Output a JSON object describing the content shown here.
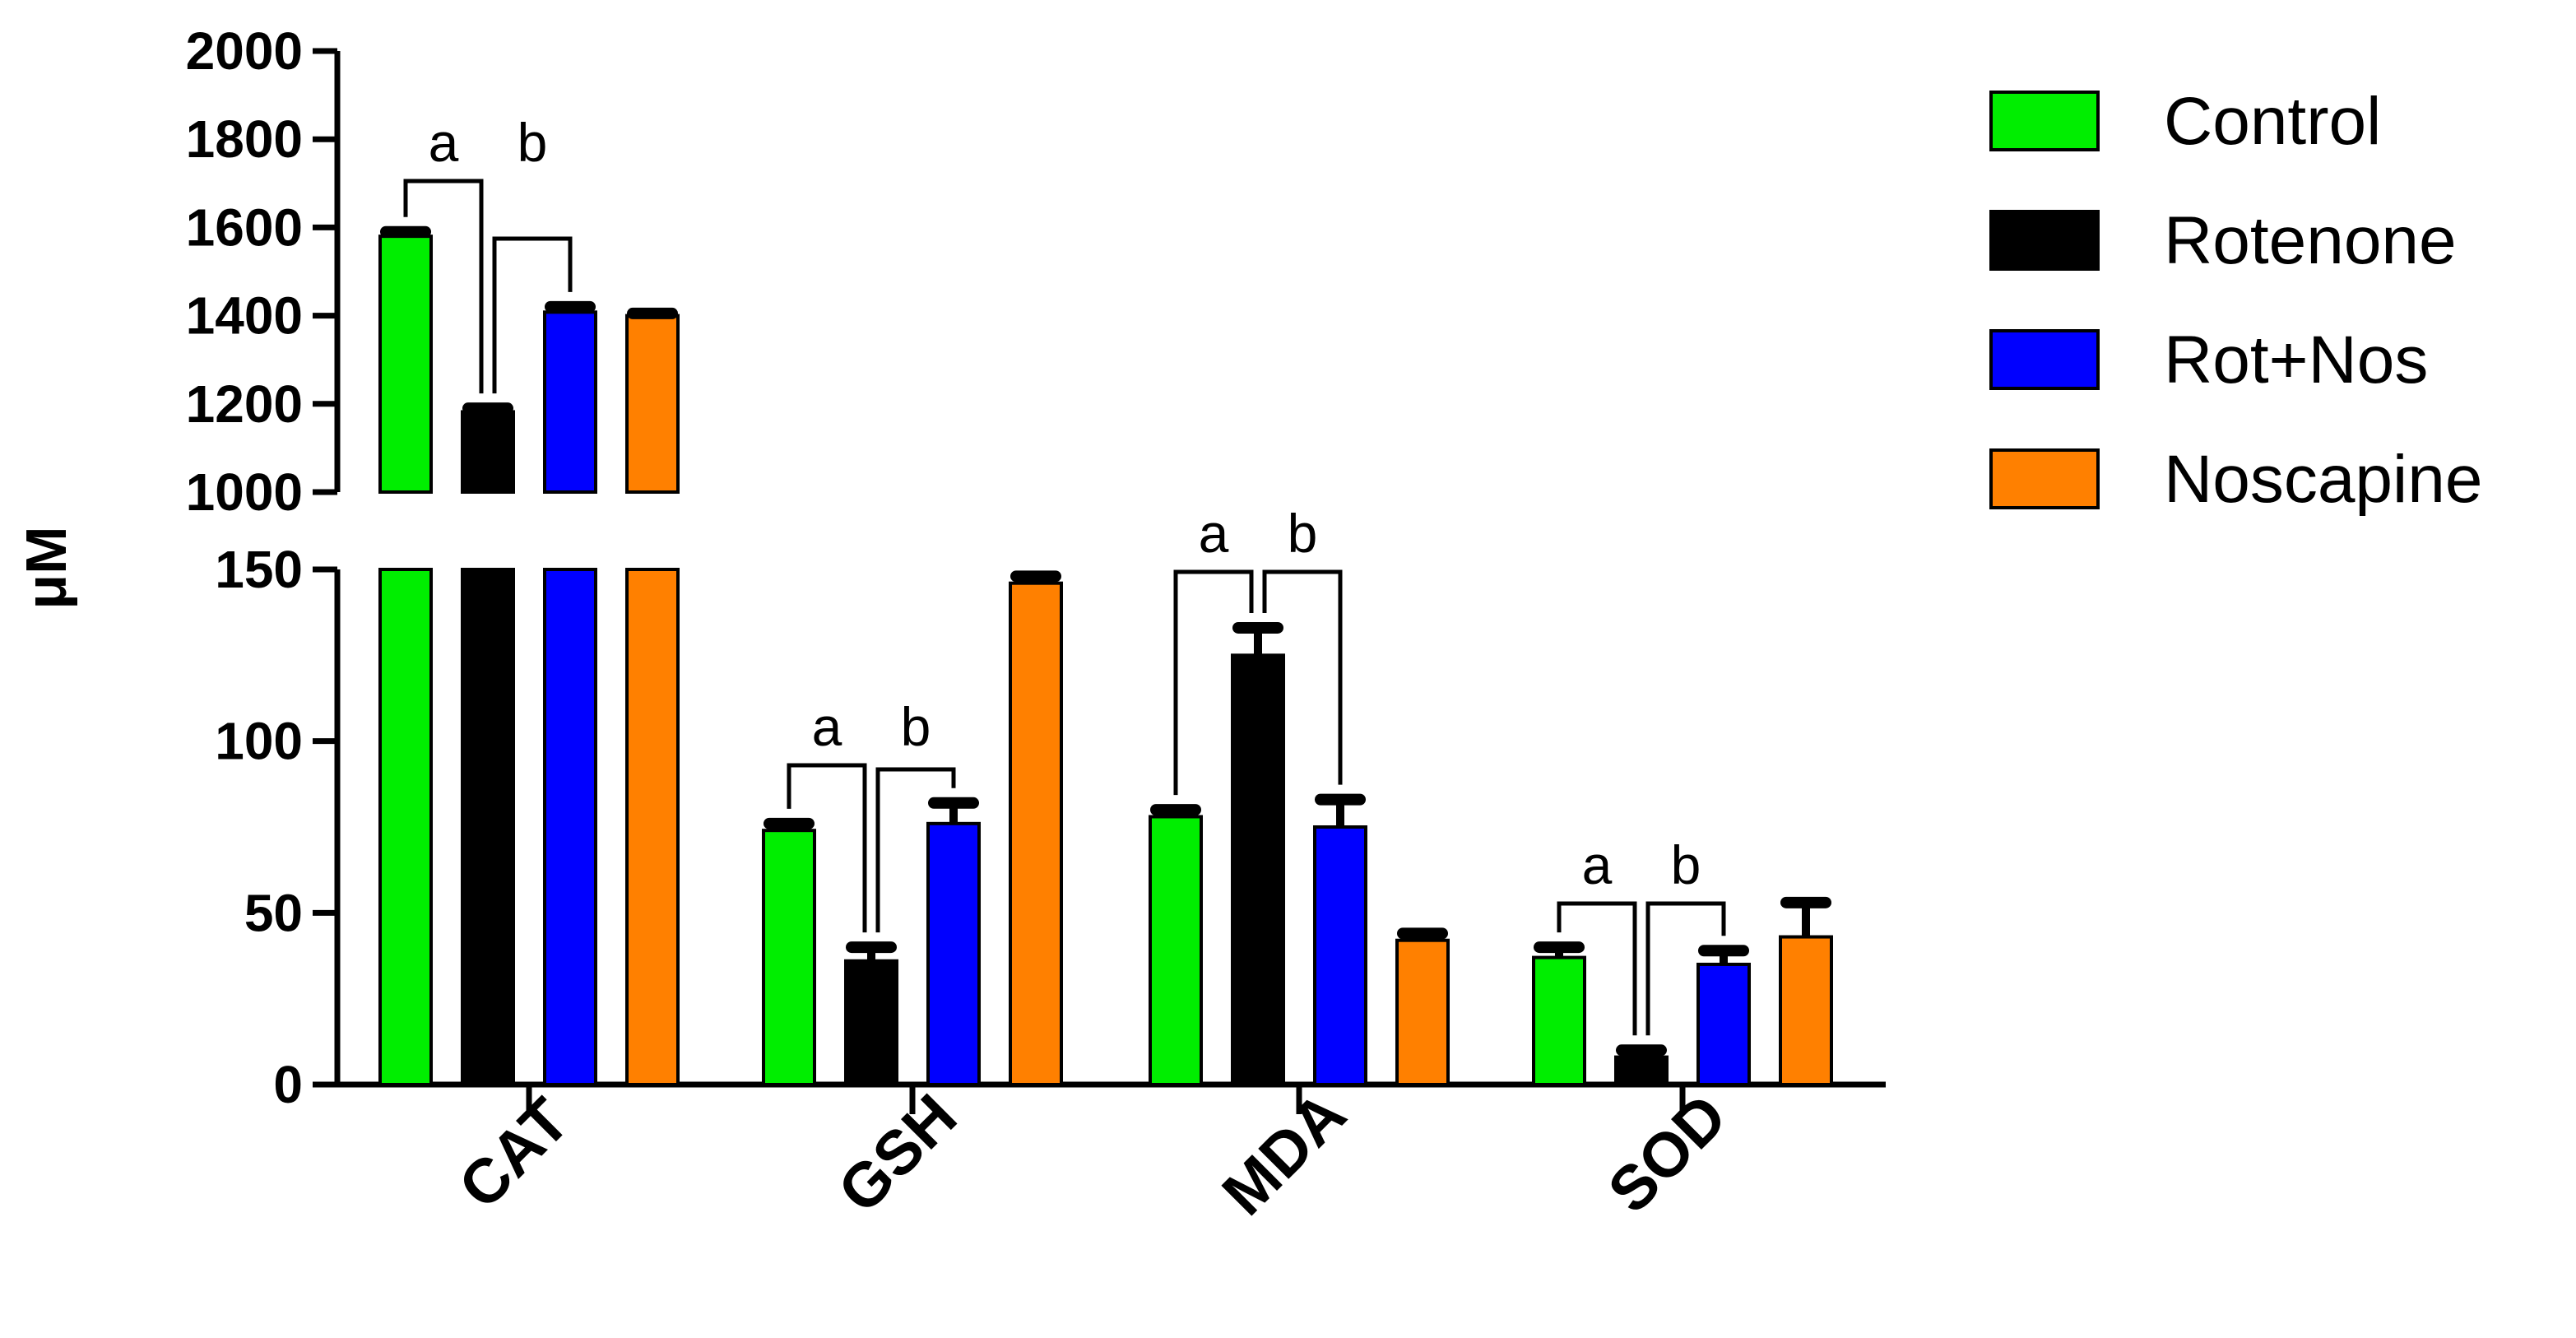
{
  "chart_data": {
    "type": "bar",
    "title": "",
    "xlabel": "",
    "ylabel": "μM",
    "y_axis_break": {
      "lower_range": [
        0,
        150
      ],
      "upper_range": [
        1000,
        2000
      ],
      "lower_ticks": [
        "0",
        "50",
        "100",
        "150"
      ],
      "upper_ticks": [
        "1000",
        "1200",
        "1400",
        "1600",
        "1800",
        "2000"
      ]
    },
    "categories": [
      "CAT",
      "GSH",
      "MDA",
      "SOD"
    ],
    "series": [
      {
        "name": "Control",
        "color": "#00ee00",
        "values": [
          1580,
          74,
          78,
          37
        ],
        "errors": [
          10,
          2,
          2,
          3
        ]
      },
      {
        "name": "Rotenone",
        "color": "#000000",
        "values": [
          1182,
          36,
          125,
          8
        ],
        "errors": [
          8,
          4,
          8,
          2
        ]
      },
      {
        "name": "Rot+Nos",
        "color": "#0000ff",
        "values": [
          1408,
          76,
          75,
          35
        ],
        "errors": [
          12,
          6,
          8,
          4
        ]
      },
      {
        "name": "Noscapine",
        "color": "#ff8000",
        "values": [
          1400,
          146,
          42,
          43
        ],
        "errors": [
          5,
          2,
          2,
          10
        ]
      }
    ],
    "significance": [
      {
        "category": "CAT",
        "labels": [
          "a",
          "b"
        ]
      },
      {
        "category": "GSH",
        "labels": [
          "a",
          "b"
        ]
      },
      {
        "category": "MDA",
        "labels": [
          "a",
          "b"
        ]
      },
      {
        "category": "SOD",
        "labels": [
          "a",
          "b"
        ]
      }
    ],
    "legend_position": "right"
  }
}
